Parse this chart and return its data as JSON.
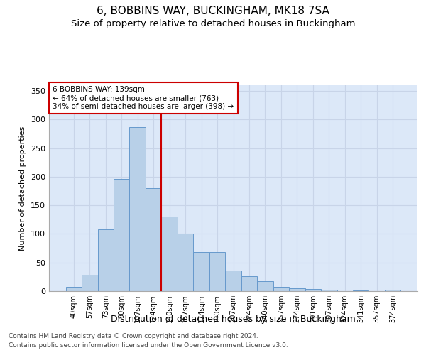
{
  "title": "6, BOBBINS WAY, BUCKINGHAM, MK18 7SA",
  "subtitle": "Size of property relative to detached houses in Buckingham",
  "xlabel": "Distribution of detached houses by size in Buckingham",
  "ylabel": "Number of detached properties",
  "footnote1": "Contains HM Land Registry data © Crown copyright and database right 2024.",
  "footnote2": "Contains public sector information licensed under the Open Government Licence v3.0.",
  "categories": [
    "40sqm",
    "57sqm",
    "73sqm",
    "90sqm",
    "107sqm",
    "124sqm",
    "140sqm",
    "157sqm",
    "174sqm",
    "190sqm",
    "207sqm",
    "224sqm",
    "240sqm",
    "257sqm",
    "274sqm",
    "291sqm",
    "307sqm",
    "324sqm",
    "341sqm",
    "357sqm",
    "374sqm"
  ],
  "values": [
    7,
    28,
    108,
    196,
    287,
    180,
    130,
    101,
    68,
    68,
    36,
    26,
    17,
    7,
    5,
    4,
    3,
    0,
    1,
    0,
    2
  ],
  "bar_color": "#b8d0e8",
  "bar_edge_color": "#6699cc",
  "vline_x_index": 5.5,
  "vline_color": "#cc0000",
  "annotation_line1": "6 BOBBINS WAY: 139sqm",
  "annotation_line2": "← 64% of detached houses are smaller (763)",
  "annotation_line3": "34% of semi-detached houses are larger (398) →",
  "annotation_box_color": "#cc0000",
  "ylim": [
    0,
    360
  ],
  "yticks": [
    0,
    50,
    100,
    150,
    200,
    250,
    300,
    350
  ],
  "grid_color": "#c8d4e8",
  "bg_color": "#dce8f8",
  "title_fontsize": 11,
  "subtitle_fontsize": 9.5,
  "bar_width": 1.0,
  "footnote_fontsize": 6.5
}
